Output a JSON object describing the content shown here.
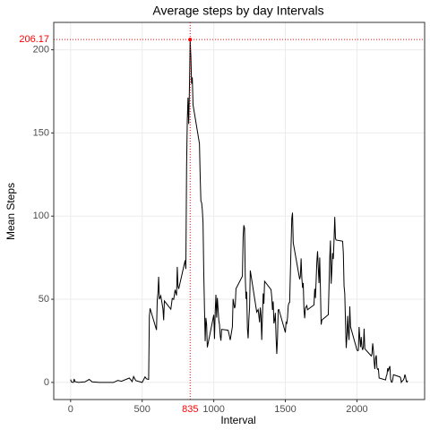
{
  "chart_data": {
    "type": "line",
    "title": "Average steps by day Intervals",
    "x_label": "Interval",
    "y_label": "Mean Steps",
    "color": "#000000",
    "grid": true,
    "xlim": [
      -117.75,
      2472.75
    ],
    "ylim": [
      -10.31,
      216.48
    ],
    "xticks": [
      0,
      500,
      1000,
      1500,
      2000
    ],
    "yticks": [
      0,
      50,
      100,
      150,
      200
    ],
    "annotations": {
      "x": 835,
      "y": 206.17,
      "color": "#ff0000"
    },
    "x": [
      0,
      5,
      10,
      20,
      25,
      30,
      55,
      100,
      130,
      150,
      200,
      230,
      300,
      330,
      355,
      410,
      430,
      440,
      455,
      500,
      520,
      530,
      545,
      550,
      555,
      600,
      605,
      610,
      615,
      620,
      630,
      645,
      650,
      655,
      700,
      710,
      720,
      730,
      740,
      745,
      750,
      755,
      800,
      805,
      810,
      815,
      820,
      825,
      830,
      835,
      840,
      845,
      850,
      855,
      900,
      905,
      910,
      915,
      920,
      925,
      930,
      935,
      940,
      945,
      950,
      955,
      1000,
      1005,
      1010,
      1015,
      1020,
      1025,
      1030,
      1035,
      1040,
      1045,
      1050,
      1055,
      1100,
      1105,
      1115,
      1130,
      1135,
      1145,
      1150,
      1155,
      1200,
      1205,
      1210,
      1215,
      1220,
      1225,
      1230,
      1235,
      1240,
      1245,
      1250,
      1255,
      1300,
      1310,
      1320,
      1325,
      1330,
      1335,
      1340,
      1345,
      1350,
      1355,
      1400,
      1405,
      1410,
      1415,
      1420,
      1425,
      1430,
      1435,
      1440,
      1445,
      1450,
      1455,
      1500,
      1505,
      1510,
      1515,
      1520,
      1525,
      1530,
      1535,
      1540,
      1545,
      1550,
      1555,
      1600,
      1605,
      1610,
      1615,
      1620,
      1625,
      1630,
      1635,
      1640,
      1645,
      1650,
      1655,
      1700,
      1705,
      1710,
      1715,
      1720,
      1725,
      1730,
      1735,
      1740,
      1745,
      1750,
      1755,
      1800,
      1805,
      1810,
      1815,
      1820,
      1825,
      1830,
      1835,
      1840,
      1845,
      1850,
      1855,
      1900,
      1905,
      1910,
      1915,
      1920,
      1925,
      1930,
      1935,
      1940,
      1945,
      1950,
      1955,
      2000,
      2005,
      2010,
      2015,
      2020,
      2025,
      2030,
      2035,
      2040,
      2045,
      2050,
      2055,
      2100,
      2105,
      2110,
      2115,
      2120,
      2125,
      2130,
      2135,
      2140,
      2145,
      2150,
      2155,
      2200,
      2205,
      2210,
      2215,
      2220,
      2225,
      2230,
      2235,
      2240,
      2245,
      2250,
      2255,
      2300,
      2305,
      2310,
      2315,
      2320,
      2325,
      2330,
      2335,
      2340,
      2345,
      2350,
      2355
    ],
    "values": [
      1.7,
      0.3,
      0.1,
      0,
      2.1,
      0.5,
      0,
      0.3,
      1.8,
      0.3,
      0,
      0,
      0,
      1.2,
      0.7,
      2.6,
      0.5,
      3.5,
      1.1,
      0,
      3.3,
      2.1,
      1.8,
      39.5,
      44.5,
      31.5,
      49.3,
      53.8,
      63.5,
      50,
      52.1,
      44.2,
      37.4,
      49,
      44,
      50.5,
      49.9,
      55.7,
      52.3,
      69.5,
      57.8,
      56.2,
      73.4,
      68.2,
      129.4,
      157.5,
      171.2,
      155.4,
      177.3,
      206.17,
      195.9,
      179.6,
      183.4,
      167,
      143.5,
      124,
      109.1,
      108.1,
      103.7,
      95.97,
      66.2,
      45.2,
      24.8,
      38.8,
      35,
      21.1,
      40.6,
      26.1,
      42.4,
      52.7,
      38.9,
      50.8,
      44.3,
      37.4,
      34.7,
      28.3,
      25.1,
      31.9,
      31.4,
      29.7,
      25.5,
      33.4,
      50.2,
      44.6,
      46,
      56.3,
      63.9,
      87.6,
      94.5,
      92.8,
      63.4,
      50.2,
      54.5,
      32.4,
      26.5,
      37.7,
      45.1,
      67.3,
      42.3,
      43.8,
      36.1,
      45,
      40,
      25.5,
      40,
      53.5,
      47.3,
      60.8,
      55.8,
      51.3,
      43.6,
      48.7,
      35.5,
      37.5,
      41.8,
      27.5,
      17.1,
      26.1,
      43.6,
      43.8,
      30,
      36.1,
      35.5,
      38.8,
      46,
      47.8,
      48.1,
      65.3,
      82.9,
      98.7,
      102.1,
      84,
      62,
      64,
      74.5,
      63,
      56.9,
      59.8,
      43.9,
      38.6,
      44.7,
      45.5,
      46.2,
      43.7,
      46.6,
      56.3,
      50.7,
      61.2,
      72.7,
      78.9,
      68.9,
      59.7,
      75.1,
      56.5,
      34.8,
      37.5,
      40.7,
      58,
      74.7,
      85.3,
      59.3,
      67.8,
      77.7,
      74.2,
      85.3,
      99.5,
      86.6,
      85.6,
      84.9,
      77.8,
      58,
      53.4,
      36.3,
      20.7,
      27.4,
      40,
      30.2,
      25.5,
      45.7,
      33.5,
      19.6,
      19,
      19.3,
      33.3,
      26.8,
      21.2,
      27.3,
      21.3,
      19.5,
      21.3,
      32.3,
      20.2,
      15.9,
      17.2,
      23.5,
      19.2,
      12.5,
      8,
      14.7,
      16.3,
      8.7,
      7.8,
      8.1,
      2.6,
      1.5,
      3.7,
      4.8,
      8.5,
      7.1,
      8.7,
      9.8,
      2.2,
      0.3,
      0.1,
      1.6,
      4.6,
      3.3,
      2.8,
      0,
      0.8,
      1,
      1.6,
      2.6,
      4.7,
      3.3,
      0.6,
      0.2,
      1.1
    ]
  }
}
